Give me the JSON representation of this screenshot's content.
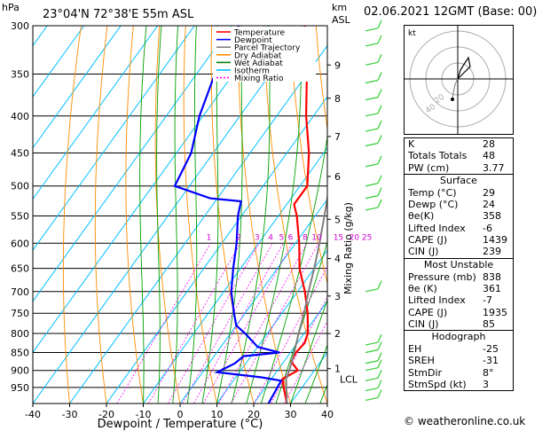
{
  "header": {
    "location": "23°04'N  72°38'E  55m  ASL",
    "datetime": "02.06.2021  12GMT  (Base: 00)",
    "unit_hpa": "hPa",
    "unit_km": "km",
    "unit_asl": "ASL"
  },
  "chart_data": {
    "type": "line",
    "xlabel": "Dewpoint / Temperature (°C)",
    "ylabel_right": "Mixing Ratio (g/kg)",
    "xlim": [
      -40,
      40
    ],
    "ylim": [
      1000,
      300
    ],
    "x_ticks": [
      "-40",
      "-30",
      "-20",
      "-10",
      "0",
      "10",
      "20",
      "30",
      "40"
    ],
    "pressure_ticks": [
      "300",
      "350",
      "400",
      "450",
      "500",
      "550",
      "600",
      "650",
      "700",
      "750",
      "800",
      "850",
      "900",
      "950"
    ],
    "km_ticks": [
      {
        "label": "9",
        "p": 340
      },
      {
        "label": "8",
        "p": 378
      },
      {
        "label": "7",
        "p": 427
      },
      {
        "label": "6",
        "p": 485
      },
      {
        "label": "5",
        "p": 556
      },
      {
        "label": "4",
        "p": 630
      },
      {
        "label": "3",
        "p": 710
      },
      {
        "label": "2",
        "p": 800
      },
      {
        "label": "1",
        "p": 895
      }
    ],
    "lcl": {
      "label": "LCL",
      "p": 925
    },
    "mixing_ratio_labels": [
      "1",
      "2",
      "3",
      "4",
      "5",
      "6",
      "8",
      "10",
      "15",
      "20",
      "25"
    ],
    "legend": [
      {
        "name": "Temperature",
        "color": "#ff0000"
      },
      {
        "name": "Dewpoint",
        "color": "#0000ff"
      },
      {
        "name": "Parcel Trajectory",
        "color": "#808080"
      },
      {
        "name": "Dry Adiabat",
        "color": "#ff8c00"
      },
      {
        "name": "Wet Adiabat",
        "color": "#008000"
      },
      {
        "name": "Isotherm",
        "color": "#00bfff"
      },
      {
        "name": "Mixing Ratio",
        "color": "#ff00ff"
      }
    ],
    "series": [
      {
        "name": "Temperature",
        "points": [
          [
            1000,
            29
          ],
          [
            950,
            25
          ],
          [
            925,
            23
          ],
          [
            900,
            25.5
          ],
          [
            875,
            22
          ],
          [
            850,
            21.5
          ],
          [
            825,
            22
          ],
          [
            800,
            21
          ],
          [
            750,
            17
          ],
          [
            700,
            12
          ],
          [
            650,
            6
          ],
          [
            600,
            1
          ],
          [
            550,
            -5
          ],
          [
            530,
            -8
          ],
          [
            500,
            -8
          ],
          [
            450,
            -14
          ],
          [
            400,
            -22
          ],
          [
            350,
            -30
          ],
          [
            300,
            -40
          ]
        ]
      },
      {
        "name": "Dewpoint",
        "points": [
          [
            1000,
            24
          ],
          [
            930,
            23
          ],
          [
            920,
            17
          ],
          [
            905,
            4
          ],
          [
            880,
            7
          ],
          [
            860,
            8
          ],
          [
            850,
            17
          ],
          [
            835,
            10
          ],
          [
            800,
            4
          ],
          [
            780,
            0
          ],
          [
            750,
            -3
          ],
          [
            700,
            -8
          ],
          [
            650,
            -12
          ],
          [
            600,
            -16
          ],
          [
            550,
            -21
          ],
          [
            525,
            -23
          ],
          [
            520,
            -32
          ],
          [
            500,
            -44
          ],
          [
            450,
            -46
          ],
          [
            400,
            -51
          ],
          [
            350,
            -55
          ],
          [
            300,
            -58
          ]
        ]
      },
      {
        "name": "Parcel Trajectory",
        "points": [
          [
            1000,
            29
          ],
          [
            925,
            24
          ],
          [
            900,
            23.2
          ],
          [
            850,
            21
          ],
          [
            800,
            18.5
          ],
          [
            750,
            16
          ],
          [
            700,
            13
          ],
          [
            650,
            10
          ],
          [
            600,
            6.5
          ],
          [
            550,
            2.5
          ],
          [
            500,
            -2
          ],
          [
            450,
            -7
          ],
          [
            400,
            -13
          ],
          [
            350,
            -20
          ],
          [
            300,
            -28
          ]
        ]
      }
    ]
  },
  "hodograph": {
    "unit": "kt",
    "ring_labels": [
      "20",
      "40"
    ]
  },
  "stats": {
    "indices": [
      {
        "label": "K",
        "value": "28"
      },
      {
        "label": "Totals Totals",
        "value": "48"
      },
      {
        "label": "PW (cm)",
        "value": "3.77"
      }
    ],
    "surface": {
      "title": "Surface",
      "rows": [
        {
          "label": "Temp (°C)",
          "value": "29"
        },
        {
          "label": "Dewp (°C)",
          "value": "24"
        },
        {
          "label": "θe(K)",
          "value": "358"
        },
        {
          "label": "Lifted Index",
          "value": "-6"
        },
        {
          "label": "CAPE (J)",
          "value": "1439"
        },
        {
          "label": "CIN (J)",
          "value": "239"
        }
      ]
    },
    "most_unstable": {
      "title": "Most Unstable",
      "rows": [
        {
          "label": "Pressure (mb)",
          "value": "838"
        },
        {
          "label": "θe (K)",
          "value": "361"
        },
        {
          "label": "Lifted Index",
          "value": "-7"
        },
        {
          "label": "CAPE (J)",
          "value": "1935"
        },
        {
          "label": "CIN (J)",
          "value": "85"
        }
      ]
    },
    "hodograph": {
      "title": "Hodograph",
      "rows": [
        {
          "label": "EH",
          "value": "-25"
        },
        {
          "label": "SREH",
          "value": "-31"
        },
        {
          "label": "StmDir",
          "value": "8°"
        },
        {
          "label": "StmSpd (kt)",
          "value": "3"
        }
      ]
    }
  },
  "footer": {
    "copyright": "© weatheronline.co.uk"
  }
}
